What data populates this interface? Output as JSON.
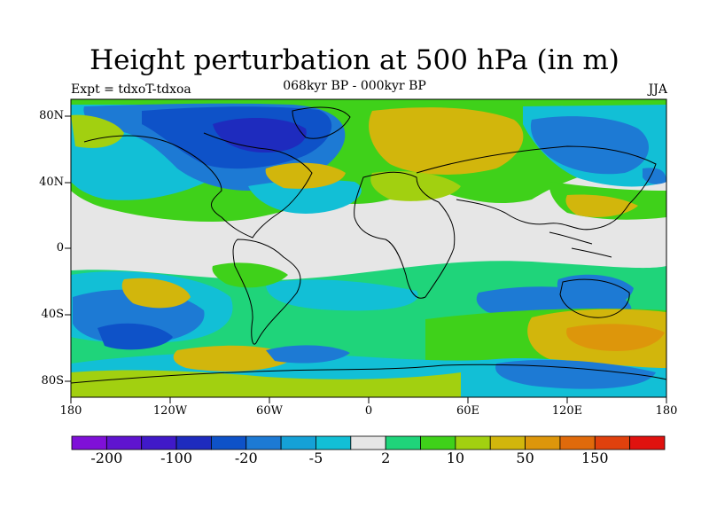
{
  "title": "Height perturbation at 500 hPa (in m)",
  "subtitle": "068kyr BP - 000kyr BP",
  "experiment_label": "Expt = tdxoT-tdxoa",
  "season": "JJA",
  "map": {
    "lat_ticks": [
      "80N",
      "40N",
      "0",
      "40S",
      "80S"
    ],
    "lon_ticks": [
      "180",
      "120W",
      "60W",
      "0",
      "60E",
      "120E",
      "180"
    ]
  },
  "colorbar": {
    "colors": [
      "#7f10d8",
      "#5f14cf",
      "#4019c8",
      "#1e2bbe",
      "#0e52c8",
      "#1d7ad4",
      "#15a1d7",
      "#12bfd6",
      "#e6e6e6",
      "#1fd47a",
      "#3fd11a",
      "#a2d010",
      "#d2b60c",
      "#dd960b",
      "#e06a0b",
      "#e0410d",
      "#e0120f"
    ],
    "labels": [
      "-200",
      "-100",
      "-20",
      "-5",
      "2",
      "10",
      "50",
      "150"
    ]
  }
}
